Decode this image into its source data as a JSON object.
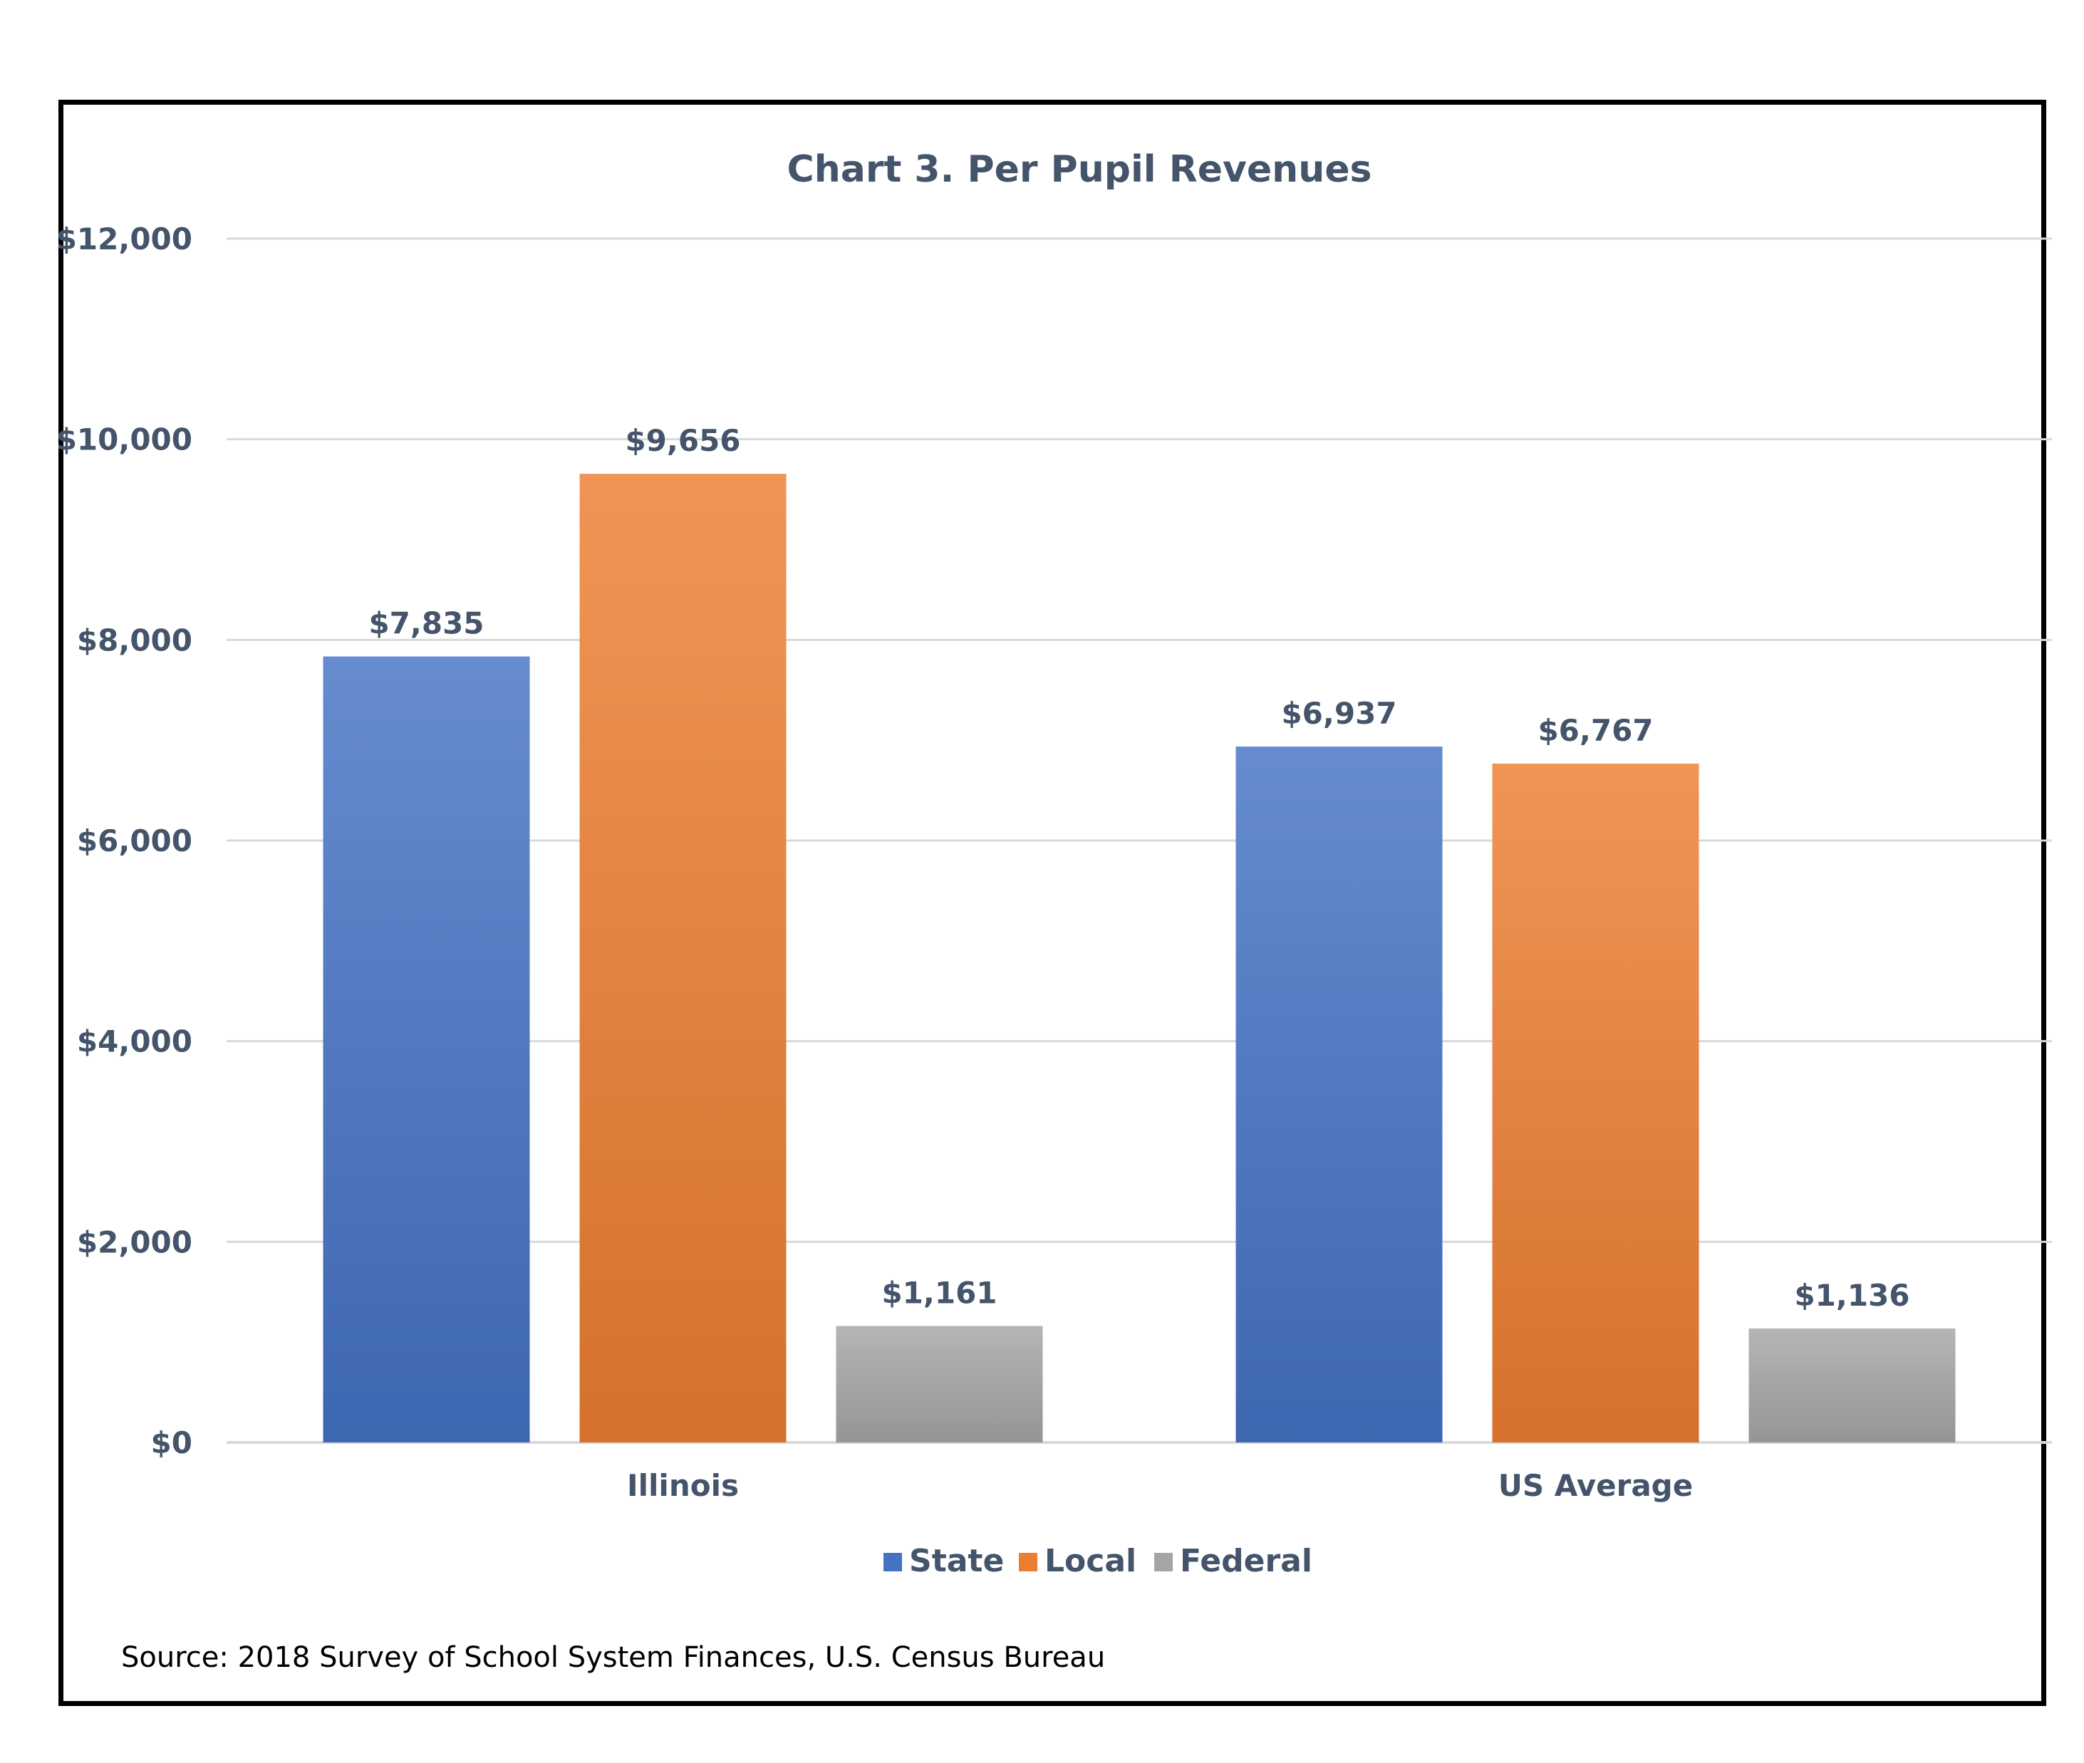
{
  "chart_data": {
    "type": "bar",
    "title": "Chart 3. Per Pupil Revenues",
    "categories": [
      "Illinois",
      "US Average"
    ],
    "series": [
      {
        "name": "State",
        "values": [
          7835,
          6937
        ],
        "labels": [
          "$7,835",
          "$6,937"
        ],
        "color": "#4472c4"
      },
      {
        "name": "Local",
        "values": [
          9656,
          6767
        ],
        "labels": [
          "$9,656",
          "$6,767"
        ],
        "color": "#ed7d31"
      },
      {
        "name": "Federal",
        "values": [
          1161,
          1136
        ],
        "labels": [
          "$1,161",
          "$1,136"
        ],
        "color": "#a5a5a5"
      }
    ],
    "yticks": [
      0,
      2000,
      4000,
      6000,
      8000,
      10000,
      12000
    ],
    "ytick_labels": [
      "$0",
      "$2,000",
      "$4,000",
      "$6,000",
      "$8,000",
      "$10,000",
      "$12,000"
    ],
    "ylim": [
      0,
      12000
    ],
    "grid": true,
    "legend": "bottom",
    "source": "Source: 2018 Survey of School System Finances, U.S. Census Bureau"
  }
}
